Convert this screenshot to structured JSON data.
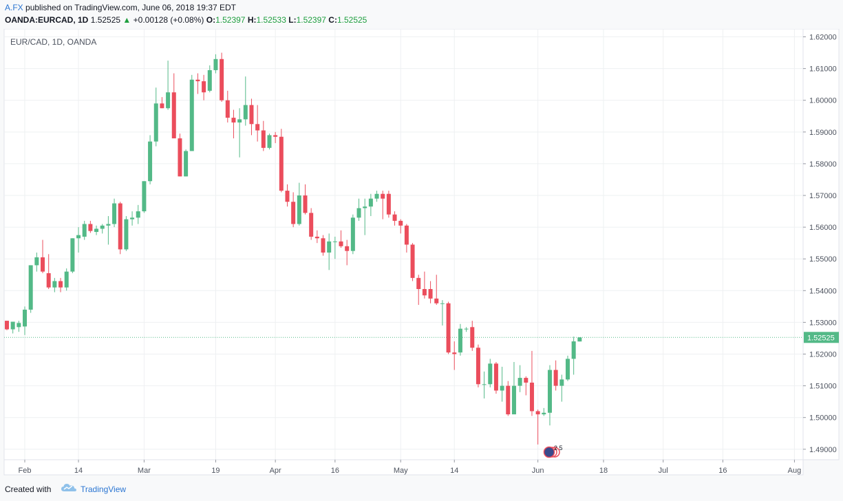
{
  "header": {
    "author": "A.FX",
    "published_text": "published on TradingView.com, June 06, 2018 19:37 EDT",
    "symbol": "OANDA:EURCAD, 1D",
    "last": "1.52525",
    "change": "+0.00128 (+0.08%)",
    "o_label": "O:",
    "o_value": "1.52397",
    "h_label": "H:",
    "h_value": "1.52533",
    "l_label": "L:",
    "l_value": "1.52397",
    "c_label": "C:",
    "c_value": "1.52525"
  },
  "footer": {
    "created_with": "Created with",
    "brand": "TradingView"
  },
  "colors": {
    "up": "#53b987",
    "down": "#eb4d5c",
    "grid": "#eef0f2",
    "axis_text": "#4c525e",
    "accent": "#2a75d2"
  },
  "event_markers": {
    "label": "2 5"
  },
  "chart_data": {
    "type": "candlestick",
    "title": "EUR/CAD, 1D, OANDA",
    "y_ticks": [
      1.49,
      1.5,
      1.51,
      1.52,
      1.53,
      1.54,
      1.55,
      1.56,
      1.57,
      1.58,
      1.59,
      1.6,
      1.61,
      1.62
    ],
    "y_tick_labels": [
      "1.49000",
      "1.50000",
      "1.51000",
      "1.52000",
      "1.53000",
      "1.54000",
      "1.55000",
      "1.56000",
      "1.57000",
      "1.58000",
      "1.59000",
      "1.60000",
      "1.61000",
      "1.62000"
    ],
    "ylim": [
      1.4867,
      1.6225
    ],
    "x_ticks": [
      {
        "label": "Feb",
        "bar": 3
      },
      {
        "label": "14",
        "bar": 12
      },
      {
        "label": "Mar",
        "bar": 23
      },
      {
        "label": "19",
        "bar": 35
      },
      {
        "label": "Apr",
        "bar": 45
      },
      {
        "label": "16",
        "bar": 55
      },
      {
        "label": "May",
        "bar": 66
      },
      {
        "label": "14",
        "bar": 75
      },
      {
        "label": "Jun",
        "bar": 89
      },
      {
        "label": "18",
        "bar": 100
      },
      {
        "label": "Jul",
        "bar": 110
      },
      {
        "label": "16",
        "bar": 120
      },
      {
        "label": "Aug",
        "bar": 132
      }
    ],
    "last_price": 1.52525,
    "grid": true,
    "candles": [
      [
        1.5305,
        1.5305,
        1.5275,
        1.5278
      ],
      [
        1.5278,
        1.53,
        1.5265,
        1.5302
      ],
      [
        1.5285,
        1.5305,
        1.527,
        1.5298
      ],
      [
        1.5287,
        1.535,
        1.526,
        1.534
      ],
      [
        1.534,
        1.548,
        1.533,
        1.548
      ],
      [
        1.548,
        1.552,
        1.546,
        1.5505
      ],
      [
        1.5505,
        1.556,
        1.5455,
        1.546
      ],
      [
        1.5455,
        1.5515,
        1.5405,
        1.541
      ],
      [
        1.541,
        1.544,
        1.5395,
        1.543
      ],
      [
        1.543,
        1.544,
        1.5395,
        1.541
      ],
      [
        1.541,
        1.547,
        1.54,
        1.546
      ],
      [
        1.546,
        1.5565,
        1.5455,
        1.5565
      ],
      [
        1.5565,
        1.56,
        1.552,
        1.5575
      ],
      [
        1.557,
        1.562,
        1.556,
        1.561
      ],
      [
        1.561,
        1.562,
        1.5582,
        1.5588
      ],
      [
        1.5585,
        1.5605,
        1.5575,
        1.5595
      ],
      [
        1.5595,
        1.561,
        1.558,
        1.5605
      ],
      [
        1.5605,
        1.5635,
        1.5545,
        1.561
      ],
      [
        1.561,
        1.569,
        1.56,
        1.5675
      ],
      [
        1.5675,
        1.568,
        1.5515,
        1.553
      ],
      [
        1.553,
        1.5635,
        1.5525,
        1.5625
      ],
      [
        1.5625,
        1.565,
        1.5605,
        1.563
      ],
      [
        1.563,
        1.567,
        1.561,
        1.565
      ],
      [
        1.565,
        1.5745,
        1.5645,
        1.5745
      ],
      [
        1.5745,
        1.589,
        1.5735,
        1.587
      ],
      [
        1.587,
        1.604,
        1.5855,
        1.599
      ],
      [
        1.599,
        1.601,
        1.5975,
        1.5975
      ],
      [
        1.5975,
        1.6125,
        1.597,
        1.6025
      ],
      [
        1.6025,
        1.6085,
        1.588,
        1.588
      ],
      [
        1.588,
        1.5895,
        1.576,
        1.576
      ],
      [
        1.576,
        1.5845,
        1.576,
        1.584
      ],
      [
        1.584,
        1.608,
        1.584,
        1.6065
      ],
      [
        1.6065,
        1.6085,
        1.602,
        1.606
      ],
      [
        1.606,
        1.608,
        1.6,
        1.6025
      ],
      [
        1.603,
        1.611,
        1.6025,
        1.6095
      ],
      [
        1.6095,
        1.6145,
        1.6085,
        1.613
      ],
      [
        1.613,
        1.615,
        1.5995,
        1.6
      ],
      [
        1.6,
        1.603,
        1.593,
        1.5945
      ],
      [
        1.5945,
        1.597,
        1.588,
        1.593
      ],
      [
        1.593,
        1.5975,
        1.582,
        1.594
      ],
      [
        1.594,
        1.6075,
        1.592,
        1.5985
      ],
      [
        1.5985,
        1.6005,
        1.589,
        1.5925
      ],
      [
        1.5925,
        1.5985,
        1.587,
        1.5905
      ],
      [
        1.5905,
        1.5935,
        1.584,
        1.585
      ],
      [
        1.585,
        1.5895,
        1.5845,
        1.589
      ],
      [
        1.589,
        1.59,
        1.5865,
        1.5885
      ],
      [
        1.5885,
        1.591,
        1.571,
        1.5715
      ],
      [
        1.5715,
        1.5735,
        1.5665,
        1.568
      ],
      [
        1.568,
        1.571,
        1.56,
        1.561
      ],
      [
        1.561,
        1.574,
        1.5605,
        1.57
      ],
      [
        1.57,
        1.5735,
        1.564,
        1.5645
      ],
      [
        1.5645,
        1.566,
        1.556,
        1.557
      ],
      [
        1.557,
        1.559,
        1.555,
        1.5565
      ],
      [
        1.5565,
        1.5575,
        1.551,
        1.552
      ],
      [
        1.552,
        1.558,
        1.5465,
        1.5555
      ],
      [
        1.5555,
        1.557,
        1.55,
        1.5555
      ],
      [
        1.5555,
        1.559,
        1.5535,
        1.554
      ],
      [
        1.554,
        1.556,
        1.548,
        1.5525
      ],
      [
        1.5525,
        1.564,
        1.5515,
        1.563
      ],
      [
        1.563,
        1.569,
        1.562,
        1.566
      ],
      [
        1.566,
        1.569,
        1.5575,
        1.5665
      ],
      [
        1.5665,
        1.5705,
        1.5635,
        1.569
      ],
      [
        1.569,
        1.5715,
        1.568,
        1.5705
      ],
      [
        1.5705,
        1.5715,
        1.5625,
        1.569
      ],
      [
        1.5705,
        1.5715,
        1.563,
        1.564
      ],
      [
        1.564,
        1.565,
        1.5605,
        1.562
      ],
      [
        1.562,
        1.5625,
        1.558,
        1.5605
      ],
      [
        1.5605,
        1.561,
        1.552,
        1.5545
      ],
      [
        1.5545,
        1.555,
        1.543,
        1.544
      ],
      [
        1.544,
        1.545,
        1.5355,
        1.5405
      ],
      [
        1.5405,
        1.546,
        1.5375,
        1.5385
      ],
      [
        1.5405,
        1.543,
        1.536,
        1.5375
      ],
      [
        1.5375,
        1.545,
        1.5355,
        1.536
      ],
      [
        1.536,
        1.537,
        1.529,
        1.536
      ],
      [
        1.536,
        1.5365,
        1.52,
        1.5205
      ],
      [
        1.5205,
        1.524,
        1.515,
        1.52
      ],
      [
        1.5205,
        1.5295,
        1.5195,
        1.528
      ],
      [
        1.528,
        1.5285,
        1.527,
        1.528
      ],
      [
        1.5285,
        1.5305,
        1.521,
        1.522
      ],
      [
        1.522,
        1.523,
        1.5095,
        1.5105
      ],
      [
        1.5105,
        1.5145,
        1.506,
        1.5105
      ],
      [
        1.5105,
        1.5185,
        1.5095,
        1.517
      ],
      [
        1.517,
        1.5175,
        1.5075,
        1.5085
      ],
      [
        1.5085,
        1.516,
        1.505,
        1.51
      ],
      [
        1.51,
        1.5115,
        1.5005,
        1.501
      ],
      [
        1.501,
        1.5175,
        1.501,
        1.51
      ],
      [
        1.51,
        1.5165,
        1.508,
        1.5125
      ],
      [
        1.5125,
        1.513,
        1.507,
        1.511
      ],
      [
        1.511,
        1.521,
        1.5005,
        1.502
      ],
      [
        1.502,
        1.5025,
        1.4915,
        1.501
      ],
      [
        1.501,
        1.503,
        1.5005,
        1.5015
      ],
      [
        1.5015,
        1.5165,
        1.4975,
        1.515
      ],
      [
        1.515,
        1.518,
        1.5085,
        1.51
      ],
      [
        1.51,
        1.5135,
        1.505,
        1.512
      ],
      [
        1.512,
        1.5195,
        1.5115,
        1.5185
      ],
      [
        1.5185,
        1.5255,
        1.5135,
        1.524
      ],
      [
        1.52397,
        1.52533,
        1.52397,
        1.52525
      ]
    ]
  }
}
